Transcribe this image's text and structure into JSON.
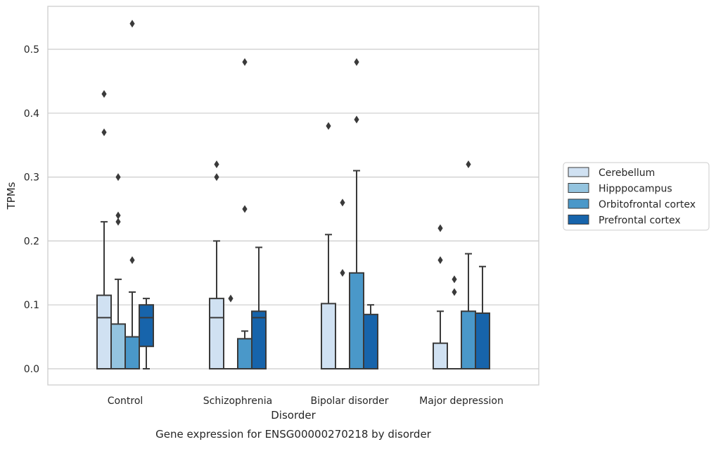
{
  "chart_data": {
    "type": "box",
    "xlabel": "Disorder",
    "ylabel": "TPMs",
    "caption": "Gene expression for ENSG00000270218 by disorder",
    "ylim": [
      -0.026,
      0.57
    ],
    "yticks": [
      "0.0",
      "0.1",
      "0.2",
      "0.3",
      "0.4",
      "0.5"
    ],
    "ytick_values": [
      0.0,
      0.1,
      0.2,
      0.3,
      0.4,
      0.5
    ],
    "grid": "horizontal",
    "legend_position": "right",
    "categories": [
      "Control",
      "Schizophrenia",
      "Bipolar disorder",
      "Major depression"
    ],
    "series": [
      {
        "name": "Cerebellum",
        "color": "#d0e1f2",
        "boxes": [
          {
            "min": 0.0,
            "q1": 0.0,
            "median": 0.08,
            "q3": 0.115,
            "max": 0.23,
            "outliers": [
              0.37,
              0.43
            ]
          },
          {
            "min": 0.0,
            "q1": 0.0,
            "median": 0.08,
            "q3": 0.11,
            "max": 0.2,
            "outliers": [
              0.3,
              0.32
            ]
          },
          {
            "min": 0.0,
            "q1": 0.0,
            "median": 0.0,
            "q3": 0.102,
            "max": 0.21,
            "outliers": [
              0.38
            ]
          },
          {
            "min": 0.0,
            "q1": 0.0,
            "median": 0.0,
            "q3": 0.04,
            "max": 0.09,
            "outliers": [
              0.17,
              0.22
            ]
          }
        ]
      },
      {
        "name": "Hipppocampus",
        "color": "#94c4df",
        "boxes": [
          {
            "min": 0.0,
            "q1": 0.0,
            "median": 0.0,
            "q3": 0.07,
            "max": 0.14,
            "outliers": [
              0.23,
              0.24,
              0.3
            ]
          },
          {
            "min": 0.0,
            "q1": 0.0,
            "median": 0.0,
            "q3": 0.0,
            "max": 0.0,
            "outliers": [
              0.11
            ]
          },
          {
            "min": 0.0,
            "q1": 0.0,
            "median": 0.0,
            "q3": 0.0,
            "max": 0.0,
            "outliers": [
              0.15,
              0.26
            ]
          },
          {
            "min": 0.0,
            "q1": 0.0,
            "median": 0.0,
            "q3": 0.0,
            "max": 0.0,
            "outliers": [
              0.12,
              0.14
            ]
          }
        ]
      },
      {
        "name": "Orbitofrontal cortex",
        "color": "#4a98c9",
        "boxes": [
          {
            "min": 0.0,
            "q1": 0.0,
            "median": 0.0,
            "q3": 0.05,
            "max": 0.12,
            "outliers": [
              0.17,
              0.54
            ]
          },
          {
            "min": 0.0,
            "q1": 0.0,
            "median": 0.0,
            "q3": 0.047,
            "max": 0.059,
            "outliers": [
              0.25,
              0.48
            ]
          },
          {
            "min": 0.0,
            "q1": 0.0,
            "median": 0.0,
            "q3": 0.15,
            "max": 0.31,
            "outliers": [
              0.39,
              0.48
            ]
          },
          {
            "min": 0.0,
            "q1": 0.0,
            "median": 0.0,
            "q3": 0.09,
            "max": 0.18,
            "outliers": [
              0.32
            ]
          }
        ]
      },
      {
        "name": "Prefrontal cortex",
        "color": "#1764ab",
        "boxes": [
          {
            "min": 0.0,
            "q1": 0.035,
            "median": 0.08,
            "q3": 0.1,
            "max": 0.11,
            "outliers": []
          },
          {
            "min": 0.0,
            "q1": 0.0,
            "median": 0.08,
            "q3": 0.09,
            "max": 0.19,
            "outliers": []
          },
          {
            "min": 0.0,
            "q1": 0.0,
            "median": 0.0,
            "q3": 0.085,
            "max": 0.1,
            "outliers": []
          },
          {
            "min": 0.0,
            "q1": 0.0,
            "median": 0.0,
            "q3": 0.087,
            "max": 0.16,
            "outliers": []
          }
        ]
      }
    ]
  }
}
